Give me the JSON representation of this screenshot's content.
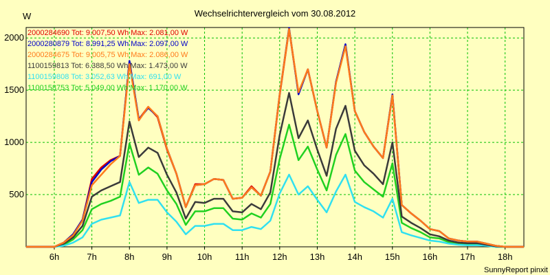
{
  "chart_data": {
    "type": "line",
    "title": "Wechselrichtervergleich vom 30.08.2012",
    "ylabel": "W",
    "xlabel": "",
    "footer": "SunnyReport pinxit",
    "ylim": [
      0,
      2100
    ],
    "yticks": [
      500,
      1000,
      1500,
      2000
    ],
    "xlim": [
      5.25,
      18.5
    ],
    "xticks": [
      6,
      7,
      8,
      9,
      10,
      11,
      12,
      13,
      14,
      15,
      16,
      17,
      18
    ],
    "xticklabels": [
      "6h",
      "7h",
      "8h",
      "9h",
      "10h",
      "11h",
      "12h",
      "13h",
      "14h",
      "15h",
      "16h",
      "17h",
      "18h"
    ],
    "grid": true,
    "legend_position": "top-left",
    "x": [
      5.25,
      5.5,
      5.75,
      6.0,
      6.25,
      6.5,
      6.75,
      7.0,
      7.25,
      7.5,
      7.75,
      8.0,
      8.25,
      8.5,
      8.75,
      9.0,
      9.25,
      9.5,
      9.75,
      10.0,
      10.25,
      10.5,
      10.75,
      11.0,
      11.25,
      11.5,
      11.75,
      12.0,
      12.25,
      12.5,
      12.75,
      13.0,
      13.25,
      13.5,
      13.75,
      14.0,
      14.25,
      14.5,
      14.75,
      15.0,
      15.25,
      15.5,
      15.75,
      16.0,
      16.25,
      16.5,
      16.75,
      17.0,
      17.25,
      17.5,
      17.75,
      18.0,
      18.25,
      18.5
    ],
    "series": [
      {
        "name": "2000284690 Tot: 9.007,50 Wh Max: 2.081,00 W",
        "color": "#E00000",
        "values": [
          0,
          0,
          0,
          0,
          40,
          120,
          260,
          650,
          760,
          830,
          870,
          1770,
          1220,
          1340,
          1240,
          930,
          700,
          380,
          600,
          600,
          650,
          640,
          460,
          470,
          580,
          490,
          720,
          1450,
          2081,
          1470,
          1700,
          1300,
          950,
          1580,
          1930,
          1300,
          1100,
          960,
          850,
          1450,
          400,
          320,
          250,
          170,
          150,
          80,
          60,
          50,
          50,
          30,
          10,
          0,
          0,
          0
        ]
      },
      {
        "name": "2000280879 Tot: 8.991,25 Wh Max: 2.097,00 W",
        "color": "#0000C8",
        "values": [
          0,
          0,
          0,
          0,
          40,
          120,
          260,
          620,
          740,
          820,
          870,
          1780,
          1220,
          1330,
          1250,
          940,
          700,
          380,
          590,
          600,
          650,
          640,
          460,
          470,
          570,
          490,
          720,
          1460,
          2097,
          1460,
          1700,
          1300,
          950,
          1580,
          1940,
          1300,
          1100,
          960,
          850,
          1460,
          400,
          320,
          250,
          170,
          150,
          80,
          60,
          50,
          50,
          30,
          10,
          0,
          0,
          0
        ]
      },
      {
        "name": "2000284675 Tot: 9.005,75 Wh Max: 2.086,00 W",
        "color": "#FF7A1A",
        "values": [
          0,
          0,
          0,
          0,
          40,
          110,
          250,
          590,
          690,
          790,
          870,
          1750,
          1210,
          1340,
          1250,
          940,
          700,
          380,
          590,
          600,
          650,
          640,
          460,
          470,
          570,
          490,
          720,
          1460,
          2086,
          1480,
          1700,
          1300,
          950,
          1570,
          1920,
          1300,
          1100,
          960,
          850,
          1450,
          400,
          320,
          250,
          170,
          150,
          80,
          60,
          50,
          50,
          30,
          10,
          0,
          0,
          0
        ]
      },
      {
        "name": "1100159813 Tot: 6.388,50 Wh Max: 1.473,00 W",
        "color": "#3A3A3A",
        "values": [
          0,
          0,
          0,
          0,
          30,
          90,
          200,
          480,
          540,
          580,
          620,
          1200,
          860,
          950,
          900,
          690,
          520,
          270,
          430,
          420,
          460,
          460,
          340,
          330,
          410,
          360,
          520,
          1070,
          1473,
          1040,
          1210,
          930,
          680,
          1130,
          1350,
          920,
          780,
          700,
          600,
          1000,
          290,
          230,
          180,
          120,
          100,
          60,
          40,
          35,
          35,
          20,
          5,
          0,
          0,
          0
        ]
      },
      {
        "name": "1100159808 Tot: 3.052,63 Wh Max: 691,00 W",
        "color": "#30E0F0",
        "values": [
          0,
          0,
          0,
          0,
          10,
          40,
          90,
          220,
          260,
          280,
          300,
          620,
          420,
          450,
          450,
          330,
          240,
          120,
          200,
          200,
          220,
          220,
          160,
          160,
          190,
          170,
          250,
          510,
          691,
          500,
          580,
          450,
          330,
          530,
          691,
          430,
          380,
          340,
          280,
          460,
          140,
          110,
          85,
          60,
          50,
          30,
          20,
          15,
          15,
          10,
          0,
          0,
          0,
          0
        ]
      },
      {
        "name": "1100158753 Tot: 5.049,00 Wh Max: 1.170,00 W",
        "color": "#20D020",
        "values": [
          0,
          0,
          0,
          0,
          20,
          70,
          160,
          360,
          410,
          440,
          480,
          990,
          690,
          760,
          700,
          540,
          410,
          210,
          340,
          340,
          370,
          370,
          270,
          260,
          320,
          280,
          410,
          840,
          1170,
          830,
          960,
          740,
          540,
          880,
          1080,
          730,
          620,
          550,
          480,
          800,
          230,
          180,
          140,
          90,
          80,
          45,
          30,
          25,
          25,
          15,
          0,
          0,
          0,
          0
        ]
      }
    ]
  }
}
